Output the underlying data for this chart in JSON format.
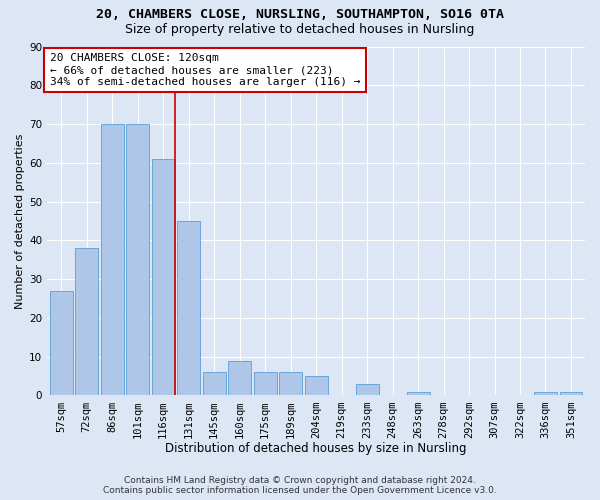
{
  "title1": "20, CHAMBERS CLOSE, NURSLING, SOUTHAMPTON, SO16 0TA",
  "title2": "Size of property relative to detached houses in Nursling",
  "xlabel": "Distribution of detached houses by size in Nursling",
  "ylabel": "Number of detached properties",
  "categories": [
    "57sqm",
    "72sqm",
    "86sqm",
    "101sqm",
    "116sqm",
    "131sqm",
    "145sqm",
    "160sqm",
    "175sqm",
    "189sqm",
    "204sqm",
    "219sqm",
    "233sqm",
    "248sqm",
    "263sqm",
    "278sqm",
    "292sqm",
    "307sqm",
    "322sqm",
    "336sqm",
    "351sqm"
  ],
  "values": [
    27,
    38,
    70,
    70,
    61,
    45,
    6,
    9,
    6,
    6,
    5,
    0,
    3,
    0,
    1,
    0,
    0,
    0,
    0,
    1,
    1
  ],
  "bar_color": "#aec6e8",
  "bar_edge_color": "#5a9fd4",
  "background_color": "#dce6f5",
  "grid_color": "#ffffff",
  "red_line_index": 4,
  "annotation_line1": "20 CHAMBERS CLOSE: 120sqm",
  "annotation_line2": "← 66% of detached houses are smaller (223)",
  "annotation_line3": "34% of semi-detached houses are larger (116) →",
  "annotation_box_color": "#ffffff",
  "annotation_box_edge": "#cc0000",
  "annotation_text_color": "#000000",
  "red_line_color": "#cc0000",
  "ylim": [
    0,
    90
  ],
  "yticks": [
    0,
    10,
    20,
    30,
    40,
    50,
    60,
    70,
    80,
    90
  ],
  "footer1": "Contains HM Land Registry data © Crown copyright and database right 2024.",
  "footer2": "Contains public sector information licensed under the Open Government Licence v3.0.",
  "title1_fontsize": 9.5,
  "title2_fontsize": 9,
  "xlabel_fontsize": 8.5,
  "ylabel_fontsize": 8,
  "tick_fontsize": 7.5,
  "annotation_fontsize": 8,
  "footer_fontsize": 6.5
}
